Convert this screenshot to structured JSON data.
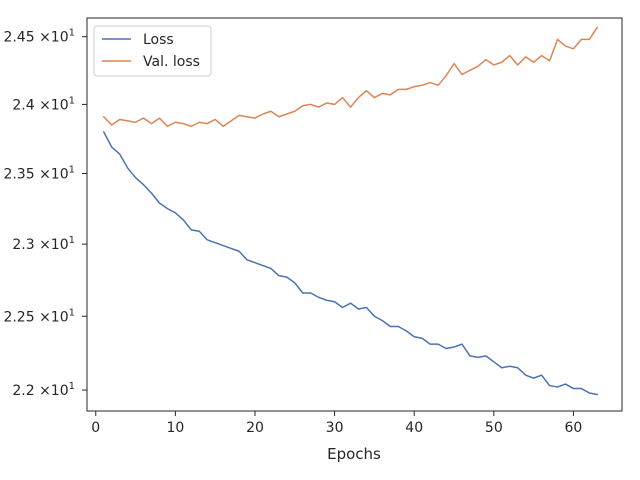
{
  "chart_data": {
    "type": "line",
    "title": "",
    "xlabel": "Epochs",
    "ylabel": "",
    "xlim": [
      -1.1,
      66.1
    ],
    "ylim": [
      21.86,
      24.64
    ],
    "y_scale": "log",
    "grid": false,
    "legend_position": "top-left",
    "x_ticks": [
      0,
      10,
      20,
      30,
      40,
      50,
      60
    ],
    "y_ticks": [
      {
        "value": 22.0,
        "mantissa": "2.2"
      },
      {
        "value": 22.5,
        "mantissa": "2.25"
      },
      {
        "value": 23.0,
        "mantissa": "2.3"
      },
      {
        "value": 23.5,
        "mantissa": "2.35"
      },
      {
        "value": 24.0,
        "mantissa": "2.4"
      },
      {
        "value": 24.5,
        "mantissa": "2.45"
      }
    ],
    "y_tick_multiplier": "×10",
    "y_tick_exponent": "1",
    "x": [
      1,
      2,
      3,
      4,
      5,
      6,
      7,
      8,
      9,
      10,
      11,
      12,
      13,
      14,
      15,
      16,
      17,
      18,
      19,
      20,
      21,
      22,
      23,
      24,
      25,
      26,
      27,
      28,
      29,
      30,
      31,
      32,
      33,
      34,
      35,
      36,
      37,
      38,
      39,
      40,
      41,
      42,
      43,
      44,
      45,
      46,
      47,
      48,
      49,
      50,
      51,
      52,
      53,
      54,
      55,
      56,
      57,
      58,
      59,
      60,
      61,
      62,
      63
    ],
    "series": [
      {
        "name": "Loss",
        "color": "#4c72b0",
        "values": [
          23.8,
          23.69,
          23.64,
          23.54,
          23.47,
          23.42,
          23.36,
          23.29,
          23.25,
          23.22,
          23.17,
          23.1,
          23.09,
          23.03,
          23.01,
          22.99,
          22.97,
          22.95,
          22.89,
          22.87,
          22.85,
          22.83,
          22.78,
          22.77,
          22.73,
          22.66,
          22.66,
          22.63,
          22.61,
          22.6,
          22.56,
          22.59,
          22.55,
          22.56,
          22.5,
          22.47,
          22.43,
          22.43,
          22.4,
          22.36,
          22.35,
          22.31,
          22.31,
          22.28,
          22.29,
          22.31,
          22.23,
          22.22,
          22.23,
          22.19,
          22.15,
          22.16,
          22.15,
          22.1,
          22.08,
          22.1,
          22.03,
          22.02,
          22.04,
          22.01,
          22.01,
          21.98,
          21.97
        ]
      },
      {
        "name": "Val. loss",
        "color": "#dd8452",
        "values": [
          23.91,
          23.85,
          23.89,
          23.88,
          23.87,
          23.9,
          23.86,
          23.9,
          23.84,
          23.87,
          23.86,
          23.84,
          23.87,
          23.86,
          23.89,
          23.84,
          23.88,
          23.92,
          23.91,
          23.9,
          23.93,
          23.95,
          23.91,
          23.93,
          23.95,
          23.99,
          24.0,
          23.98,
          24.01,
          24.0,
          24.05,
          23.98,
          24.05,
          24.1,
          24.05,
          24.08,
          24.07,
          24.11,
          24.11,
          24.13,
          24.14,
          24.16,
          24.14,
          24.21,
          24.3,
          24.22,
          24.25,
          24.28,
          24.33,
          24.29,
          24.31,
          24.36,
          24.29,
          24.35,
          24.31,
          24.36,
          24.32,
          24.48,
          24.43,
          24.41,
          24.48,
          24.48,
          24.57
        ]
      }
    ]
  }
}
